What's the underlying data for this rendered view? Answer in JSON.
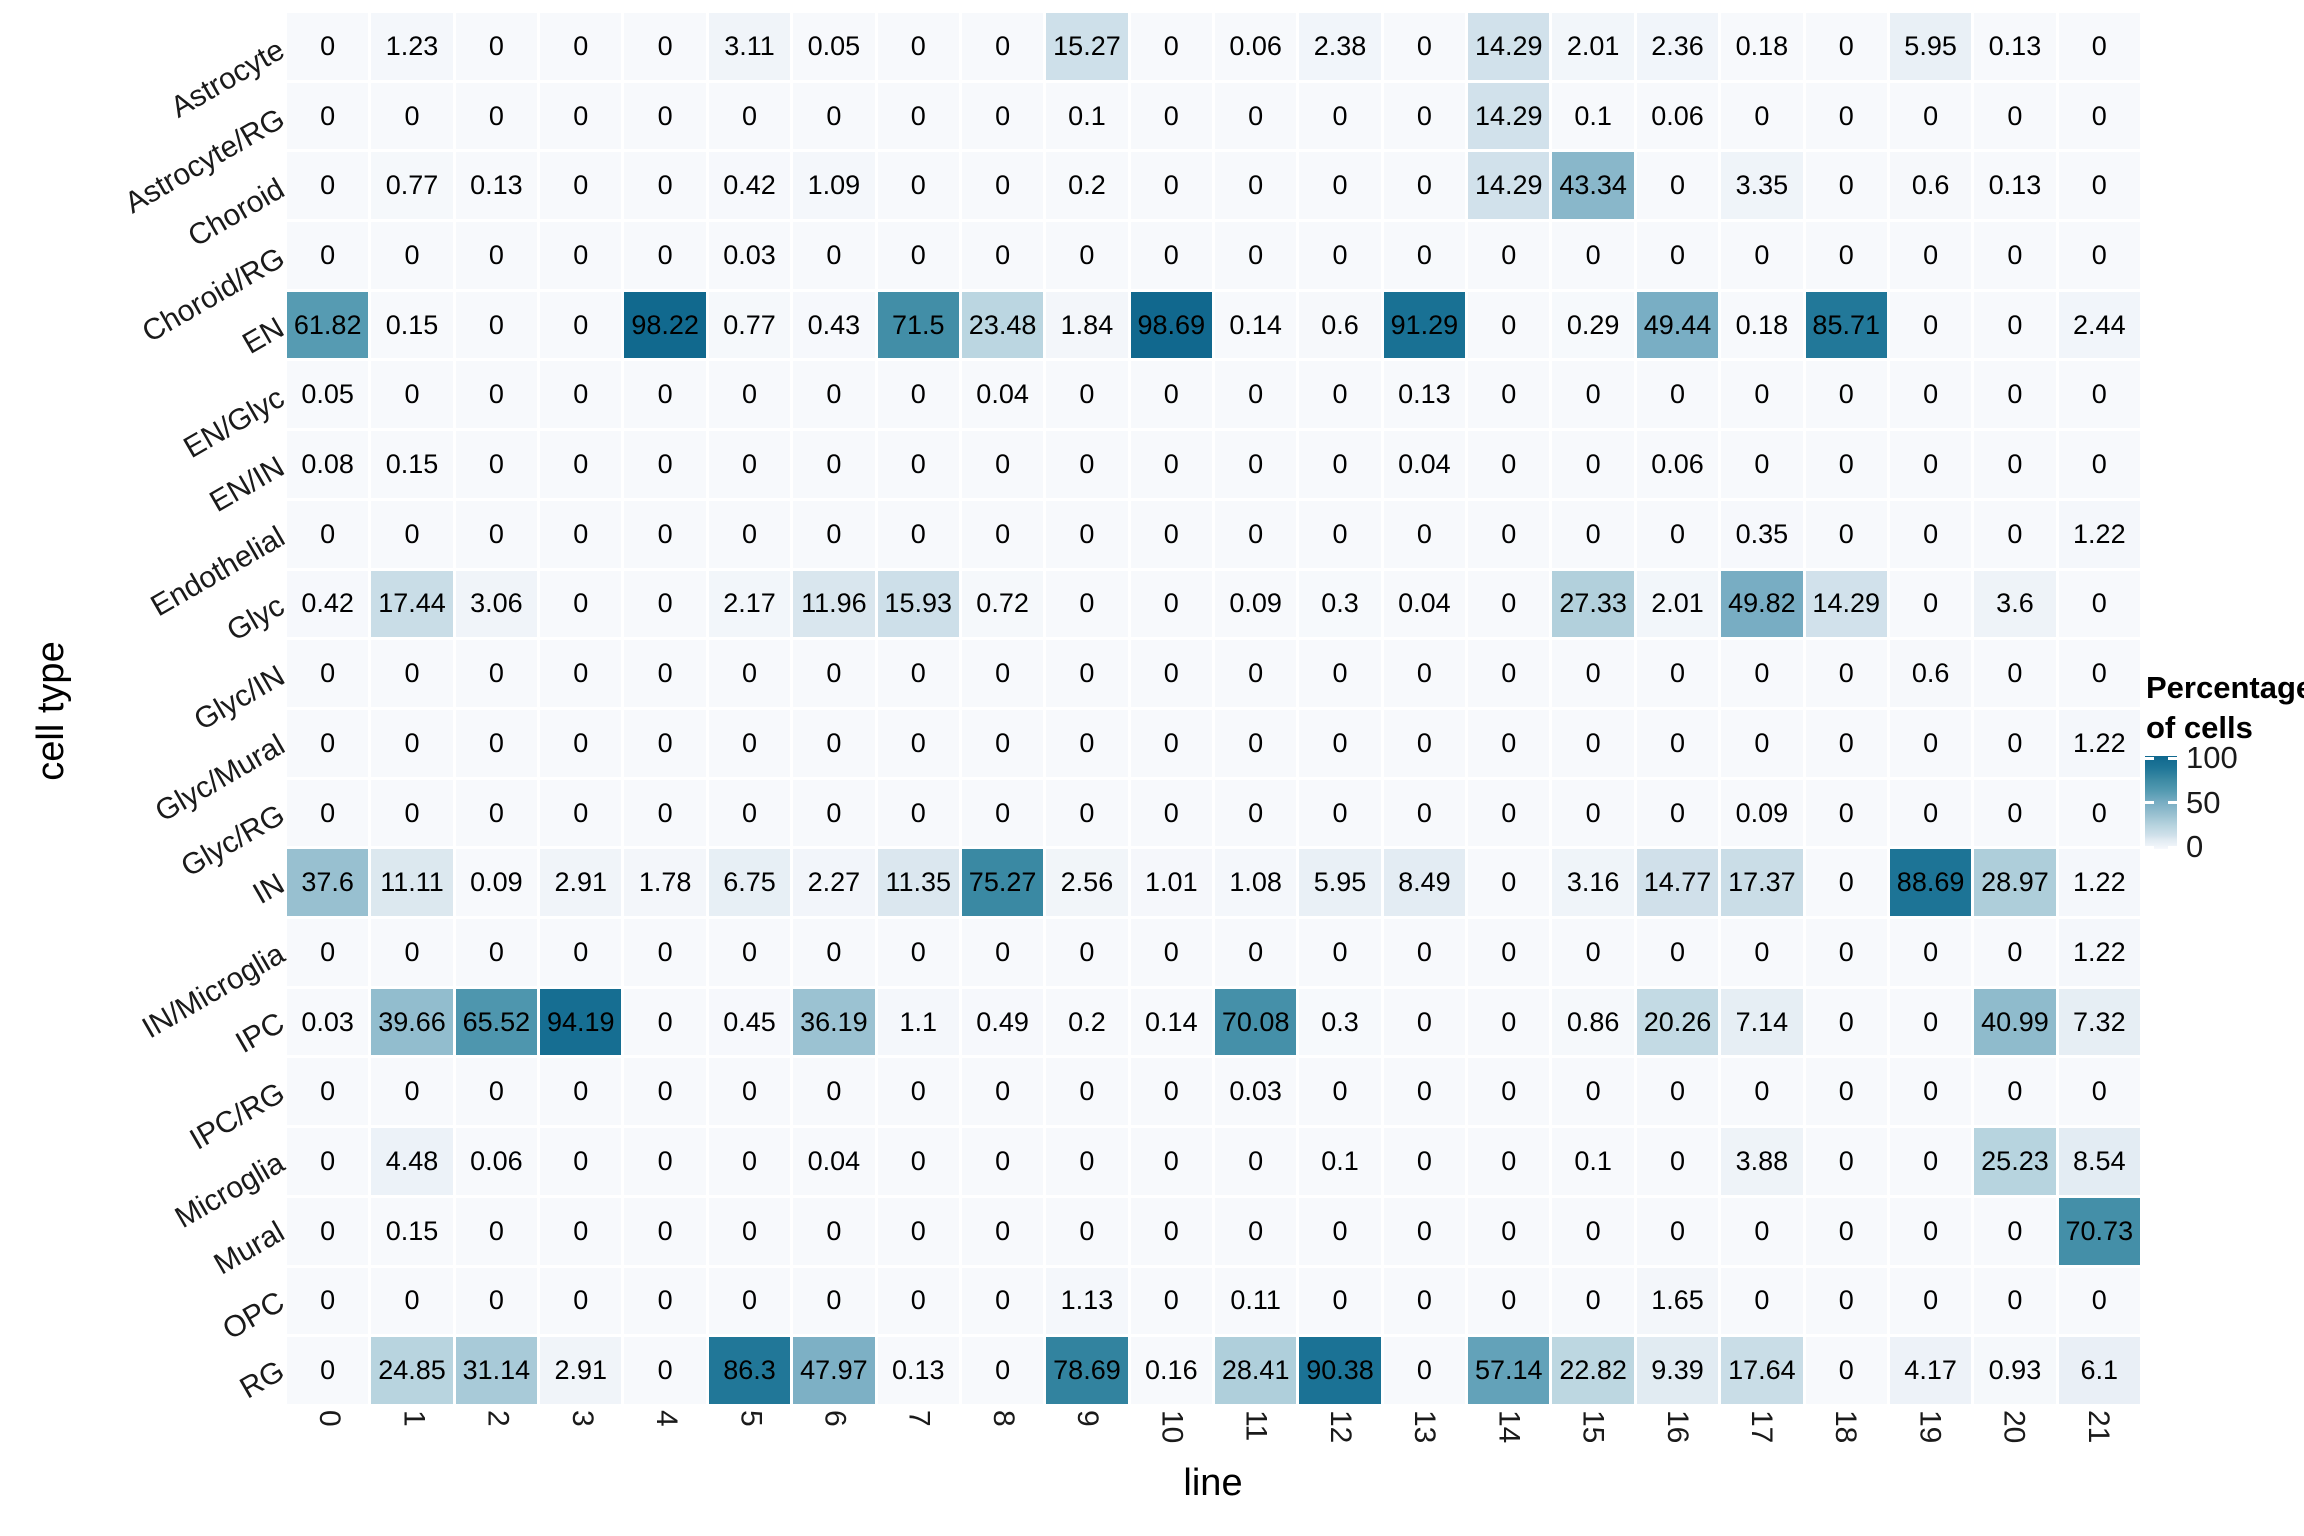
{
  "chart_data": {
    "type": "heatmap",
    "xlabel": "line",
    "ylabel": "cell type",
    "x_categories": [
      "0",
      "1",
      "2",
      "3",
      "4",
      "5",
      "6",
      "7",
      "8",
      "9",
      "10",
      "11",
      "12",
      "13",
      "14",
      "15",
      "16",
      "17",
      "18",
      "19",
      "20",
      "21"
    ],
    "y_categories": [
      "Astrocyte",
      "Astrocyte/RG",
      "Choroid",
      "Choroid/RG",
      "EN",
      "EN/Glyc",
      "EN/IN",
      "Endothelial",
      "Glyc",
      "Glyc/IN",
      "Glyc/Mural",
      "Glyc/RG",
      "IN",
      "IN/Microglia",
      "IPC",
      "IPC/RG",
      "Microglia",
      "Mural",
      "OPC",
      "RG"
    ],
    "values": [
      [
        "0",
        "1.23",
        "0",
        "0",
        "0",
        "3.11",
        "0.05",
        "0",
        "0",
        "15.27",
        "0",
        "0.06",
        "2.38",
        "0",
        "14.29",
        "2.01",
        "2.36",
        "0.18",
        "0",
        "5.95",
        "0.13",
        "0"
      ],
      [
        "0",
        "0",
        "0",
        "0",
        "0",
        "0",
        "0",
        "0",
        "0",
        "0.1",
        "0",
        "0",
        "0",
        "0",
        "14.29",
        "0.1",
        "0.06",
        "0",
        "0",
        "0",
        "0",
        "0"
      ],
      [
        "0",
        "0.77",
        "0.13",
        "0",
        "0",
        "0.42",
        "1.09",
        "0",
        "0",
        "0.2",
        "0",
        "0",
        "0",
        "0",
        "14.29",
        "43.34",
        "0",
        "3.35",
        "0",
        "0.6",
        "0.13",
        "0"
      ],
      [
        "0",
        "0",
        "0",
        "0",
        "0",
        "0.03",
        "0",
        "0",
        "0",
        "0",
        "0",
        "0",
        "0",
        "0",
        "0",
        "0",
        "0",
        "0",
        "0",
        "0",
        "0",
        "0"
      ],
      [
        "61.82",
        "0.15",
        "0",
        "0",
        "98.22",
        "0.77",
        "0.43",
        "71.5",
        "23.48",
        "1.84",
        "98.69",
        "0.14",
        "0.6",
        "91.29",
        "0",
        "0.29",
        "49.44",
        "0.18",
        "85.71",
        "0",
        "0",
        "2.44"
      ],
      [
        "0.05",
        "0",
        "0",
        "0",
        "0",
        "0",
        "0",
        "0",
        "0.04",
        "0",
        "0",
        "0",
        "0",
        "0.13",
        "0",
        "0",
        "0",
        "0",
        "0",
        "0",
        "0",
        "0"
      ],
      [
        "0.08",
        "0.15",
        "0",
        "0",
        "0",
        "0",
        "0",
        "0",
        "0",
        "0",
        "0",
        "0",
        "0",
        "0.04",
        "0",
        "0",
        "0.06",
        "0",
        "0",
        "0",
        "0",
        "0"
      ],
      [
        "0",
        "0",
        "0",
        "0",
        "0",
        "0",
        "0",
        "0",
        "0",
        "0",
        "0",
        "0",
        "0",
        "0",
        "0",
        "0",
        "0",
        "0.35",
        "0",
        "0",
        "0",
        "1.22"
      ],
      [
        "0.42",
        "17.44",
        "3.06",
        "0",
        "0",
        "2.17",
        "11.96",
        "15.93",
        "0.72",
        "0",
        "0",
        "0.09",
        "0.3",
        "0.04",
        "0",
        "27.33",
        "2.01",
        "49.82",
        "14.29",
        "0",
        "3.6",
        "0"
      ],
      [
        "0",
        "0",
        "0",
        "0",
        "0",
        "0",
        "0",
        "0",
        "0",
        "0",
        "0",
        "0",
        "0",
        "0",
        "0",
        "0",
        "0",
        "0",
        "0",
        "0.6",
        "0",
        "0"
      ],
      [
        "0",
        "0",
        "0",
        "0",
        "0",
        "0",
        "0",
        "0",
        "0",
        "0",
        "0",
        "0",
        "0",
        "0",
        "0",
        "0",
        "0",
        "0",
        "0",
        "0",
        "0",
        "1.22"
      ],
      [
        "0",
        "0",
        "0",
        "0",
        "0",
        "0",
        "0",
        "0",
        "0",
        "0",
        "0",
        "0",
        "0",
        "0",
        "0",
        "0",
        "0",
        "0.09",
        "0",
        "0",
        "0",
        "0"
      ],
      [
        "37.6",
        "11.11",
        "0.09",
        "2.91",
        "1.78",
        "6.75",
        "2.27",
        "11.35",
        "75.27",
        "2.56",
        "1.01",
        "1.08",
        "5.95",
        "8.49",
        "0",
        "3.16",
        "14.77",
        "17.37",
        "0",
        "88.69",
        "28.97",
        "1.22"
      ],
      [
        "0",
        "0",
        "0",
        "0",
        "0",
        "0",
        "0",
        "0",
        "0",
        "0",
        "0",
        "0",
        "0",
        "0",
        "0",
        "0",
        "0",
        "0",
        "0",
        "0",
        "0",
        "1.22"
      ],
      [
        "0.03",
        "39.66",
        "65.52",
        "94.19",
        "0",
        "0.45",
        "36.19",
        "1.1",
        "0.49",
        "0.2",
        "0.14",
        "70.08",
        "0.3",
        "0",
        "0",
        "0.86",
        "20.26",
        "7.14",
        "0",
        "0",
        "40.99",
        "7.32"
      ],
      [
        "0",
        "0",
        "0",
        "0",
        "0",
        "0",
        "0",
        "0",
        "0",
        "0",
        "0",
        "0.03",
        "0",
        "0",
        "0",
        "0",
        "0",
        "0",
        "0",
        "0",
        "0",
        "0"
      ],
      [
        "0",
        "4.48",
        "0.06",
        "0",
        "0",
        "0",
        "0.04",
        "0",
        "0",
        "0",
        "0",
        "0",
        "0.1",
        "0",
        "0",
        "0.1",
        "0",
        "3.88",
        "0",
        "0",
        "25.23",
        "8.54"
      ],
      [
        "0",
        "0.15",
        "0",
        "0",
        "0",
        "0",
        "0",
        "0",
        "0",
        "0",
        "0",
        "0",
        "0",
        "0",
        "0",
        "0",
        "0",
        "0",
        "0",
        "0",
        "0",
        "70.73"
      ],
      [
        "0",
        "0",
        "0",
        "0",
        "0",
        "0",
        "0",
        "0",
        "0",
        "1.13",
        "0",
        "0.11",
        "0",
        "0",
        "0",
        "0",
        "1.65",
        "0",
        "0",
        "0",
        "0",
        "0"
      ],
      [
        "0",
        "24.85",
        "31.14",
        "2.91",
        "0",
        "86.3",
        "47.97",
        "0.13",
        "0",
        "78.69",
        "0.16",
        "28.41",
        "90.38",
        "0",
        "57.14",
        "22.82",
        "9.39",
        "17.64",
        "0",
        "4.17",
        "0.93",
        "6.1"
      ]
    ],
    "legend": {
      "title_line1": "Percentage",
      "title_line2": "of cells",
      "ticks": [
        "100",
        "50",
        "0"
      ],
      "tick_values": [
        100,
        50,
        0
      ]
    },
    "color_scale": {
      "type": "linear",
      "value_range": [
        0,
        100
      ],
      "stops": [
        [
          0,
          "#F7F9FC"
        ],
        [
          5,
          "#EBF1F7"
        ],
        [
          10,
          "#E0EAF1"
        ],
        [
          15,
          "#CFE0EA"
        ],
        [
          25,
          "#B8D4DF"
        ],
        [
          37.5,
          "#98C0D0"
        ],
        [
          50,
          "#78ADC3"
        ],
        [
          62.5,
          "#549AB1"
        ],
        [
          75,
          "#3B89A3"
        ],
        [
          87.5,
          "#1E7597"
        ],
        [
          100,
          "#0F678D"
        ]
      ]
    },
    "layout_hints": {
      "legend_position": "right",
      "grid": "off",
      "x_tick_angle": 90,
      "y_tick_angle": 30
    }
  }
}
